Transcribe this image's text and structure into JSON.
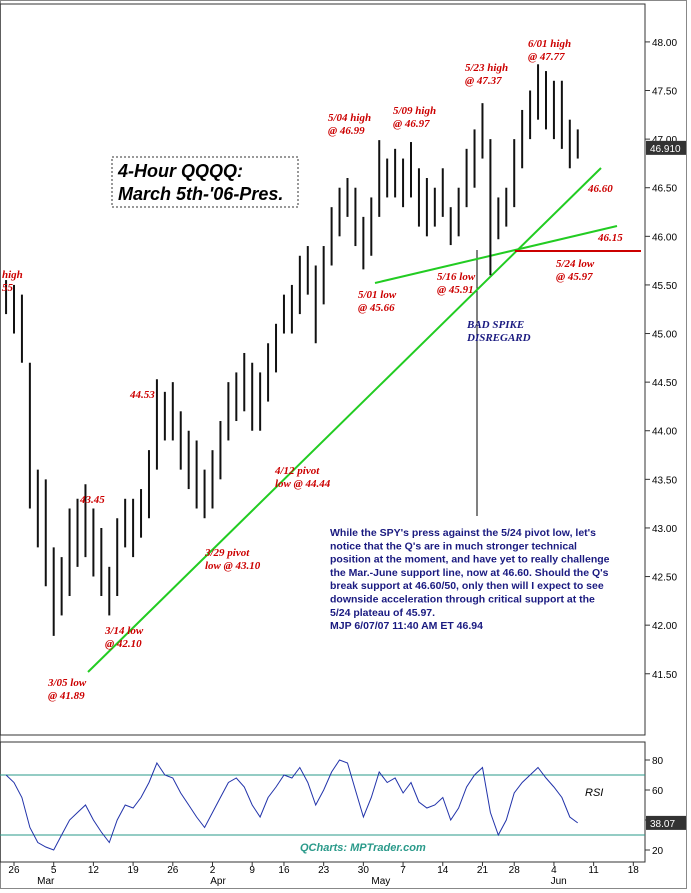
{
  "chart_data": [
    {
      "type": "hilo",
      "title": [
        "4-Hour QQQQ:",
        "March 5th-'06-Pres."
      ],
      "color": "#111111",
      "x": [
        -1,
        0,
        1,
        2,
        3,
        4,
        5,
        6,
        7,
        8,
        9,
        10,
        11,
        12,
        13,
        14,
        15,
        16,
        17,
        18,
        19,
        20,
        21,
        22,
        23,
        24,
        25,
        26,
        27,
        28,
        29,
        30,
        31,
        32,
        33,
        34,
        35,
        36,
        37,
        38,
        39,
        40,
        41,
        42,
        43,
        44,
        45,
        46,
        47,
        48,
        49,
        50,
        51,
        52,
        53,
        54,
        55,
        56,
        57,
        58,
        59,
        60,
        61,
        62,
        63,
        64,
        65,
        66,
        67,
        68,
        69,
        70,
        71
      ],
      "high": [
        45.55,
        45.5,
        45.4,
        44.7,
        43.6,
        43.5,
        42.8,
        42.7,
        43.2,
        43.3,
        43.45,
        43.2,
        43.0,
        42.6,
        43.1,
        43.3,
        43.3,
        43.4,
        43.8,
        44.53,
        44.4,
        44.5,
        44.2,
        44.0,
        43.9,
        43.6,
        43.8,
        44.1,
        44.5,
        44.6,
        44.8,
        44.7,
        44.6,
        44.9,
        45.1,
        45.4,
        45.5,
        45.8,
        45.9,
        45.7,
        45.9,
        46.3,
        46.5,
        46.6,
        46.5,
        46.2,
        46.4,
        46.99,
        46.8,
        46.9,
        46.8,
        46.97,
        46.7,
        46.6,
        46.5,
        46.7,
        46.3,
        46.5,
        46.9,
        47.1,
        47.37,
        47.0,
        46.4,
        46.5,
        47.0,
        47.3,
        47.5,
        47.77,
        47.7,
        47.6,
        47.6,
        47.2,
        47.1
      ],
      "low": [
        45.2,
        45.0,
        44.7,
        43.2,
        42.8,
        42.4,
        41.89,
        42.1,
        42.3,
        42.6,
        42.7,
        42.5,
        42.3,
        42.1,
        42.3,
        42.8,
        42.7,
        42.9,
        43.1,
        43.6,
        43.9,
        43.9,
        43.6,
        43.4,
        43.2,
        43.1,
        43.2,
        43.5,
        43.9,
        44.1,
        44.2,
        44.0,
        44.0,
        44.3,
        44.6,
        45.0,
        45.0,
        45.2,
        45.4,
        44.9,
        45.3,
        45.7,
        46.0,
        46.2,
        45.9,
        45.66,
        45.8,
        46.2,
        46.4,
        46.4,
        46.3,
        46.4,
        46.1,
        46.0,
        46.1,
        46.2,
        45.91,
        46.0,
        46.3,
        46.5,
        46.8,
        45.6,
        45.97,
        46.1,
        46.3,
        46.7,
        47.0,
        47.2,
        47.1,
        47.0,
        46.9,
        46.7,
        46.8
      ],
      "xlim": [
        -1.763,
        79.47
      ],
      "ylim": [
        40.87,
        48.39
      ],
      "yticks": [
        {
          "value": 41.5,
          "label": "41.50"
        },
        {
          "value": 42,
          "label": "42.00"
        },
        {
          "value": 42.5,
          "label": "42.50"
        },
        {
          "value": 43,
          "label": "43.00"
        },
        {
          "value": 43.5,
          "label": "43.50"
        },
        {
          "value": 44,
          "label": "44.00"
        },
        {
          "value": 44.5,
          "label": "44.50"
        },
        {
          "value": 45,
          "label": "45.00"
        },
        {
          "value": 45.5,
          "label": "45.50"
        },
        {
          "value": 46,
          "label": "46.00"
        },
        {
          "value": 46.5,
          "label": "46.50"
        },
        {
          "value": 47,
          "label": "47.00"
        },
        {
          "value": 47.5,
          "label": "47.50"
        },
        {
          "value": 48,
          "label": "48.00"
        }
      ],
      "last_value": {
        "value": 46.91,
        "label": "46.910"
      },
      "annotations": [
        {
          "lines": [
            "high",
            "55"
          ],
          "color": "#cc0000"
        },
        {
          "lines": [
            "43.45"
          ],
          "color": "#cc0000"
        },
        {
          "lines": [
            "44.53"
          ],
          "color": "#cc0000"
        },
        {
          "lines": [
            "3/05 low",
            "@ 41.89"
          ],
          "color": "#cc0000"
        },
        {
          "lines": [
            "3/14 low",
            "@ 42.10"
          ],
          "color": "#cc0000"
        },
        {
          "lines": [
            "3/29 pivot",
            "low @ 43.10"
          ],
          "color": "#cc0000"
        },
        {
          "lines": [
            "4/12 pivot",
            "low @ 44.44"
          ],
          "color": "#cc0000"
        },
        {
          "lines": [
            "5/01 low",
            "@ 45.66"
          ],
          "color": "#cc0000"
        },
        {
          "lines": [
            "5/04 high",
            "@ 46.99"
          ],
          "color": "#cc0000"
        },
        {
          "lines": [
            "5/09 high",
            "@ 46.97"
          ],
          "color": "#cc0000"
        },
        {
          "lines": [
            "5/16 low",
            "@ 45.91"
          ],
          "color": "#cc0000"
        },
        {
          "lines": [
            "5/23 high",
            "@ 47.37"
          ],
          "color": "#cc0000"
        },
        {
          "lines": [
            "6/01 high",
            "@ 47.77"
          ],
          "color": "#cc0000"
        },
        {
          "lines": [
            "46.60"
          ],
          "color": "#cc0000"
        },
        {
          "lines": [
            "46.15"
          ],
          "color": "#cc0000"
        },
        {
          "lines": [
            "5/24 low",
            "@ 45.97"
          ],
          "color": "#cc0000"
        },
        {
          "lines": [
            "BAD SPIKE",
            "DISREGARD"
          ],
          "color": "#1a1a80"
        }
      ],
      "commentary": [
        "While the SPY's press against the 5/24 pivot low, let's",
        "notice that the Q's are in much stronger technical",
        "position at the moment, and have yet to really challenge",
        "the Mar.-June support line, now at 46.60. Should the Q's",
        "break support at 46.60/50, only then will I expect to see",
        "downside acceleration through critical support at the",
        "5/24 plateau of 45.97.",
        "MJP 6/07/07 11:40 AM ET  46.94"
      ]
    },
    {
      "type": "line",
      "label": "RSI",
      "watermark": "QCharts: MPTrader.com",
      "color": "#2233aa",
      "values": [
        70,
        65,
        55,
        35,
        25,
        22,
        20,
        30,
        40,
        45,
        50,
        40,
        32,
        25,
        40,
        50,
        48,
        55,
        65,
        78,
        70,
        68,
        58,
        50,
        42,
        35,
        45,
        55,
        65,
        68,
        62,
        50,
        42,
        55,
        62,
        70,
        68,
        75,
        65,
        50,
        60,
        72,
        80,
        78,
        60,
        42,
        55,
        72,
        65,
        68,
        58,
        65,
        52,
        48,
        50,
        55,
        40,
        48,
        62,
        70,
        75,
        45,
        30,
        40,
        58,
        65,
        70,
        75,
        68,
        62,
        55,
        42,
        38.07
      ],
      "ylim": [
        12,
        92
      ],
      "yticks": [
        20,
        40,
        60,
        80
      ],
      "hlines": [
        30,
        70
      ],
      "last_value": {
        "value": 38.07,
        "label": "38.07"
      },
      "xticks": [
        {
          "value": 0,
          "label": "26"
        },
        {
          "value": 5,
          "label": "5"
        },
        {
          "value": 10,
          "label": "12"
        },
        {
          "value": 15,
          "label": "19"
        },
        {
          "value": 20,
          "label": "26"
        },
        {
          "value": 25,
          "label": "2"
        },
        {
          "value": 30,
          "label": "9"
        },
        {
          "value": 34,
          "label": "16"
        },
        {
          "value": 39,
          "label": "23"
        },
        {
          "value": 44,
          "label": "30"
        },
        {
          "value": 49,
          "label": "7"
        },
        {
          "value": 54,
          "label": "14"
        },
        {
          "value": 59,
          "label": "21"
        },
        {
          "value": 63,
          "label": "28"
        },
        {
          "value": 68,
          "label": "4"
        },
        {
          "value": 73,
          "label": "11"
        },
        {
          "value": 78,
          "label": "18"
        }
      ],
      "xmonths": [
        {
          "value": 4,
          "label": "Mar"
        },
        {
          "value": 25.7,
          "label": "Apr"
        },
        {
          "value": 46.2,
          "label": "May"
        },
        {
          "value": 68.6,
          "label": "Jun"
        }
      ]
    }
  ]
}
